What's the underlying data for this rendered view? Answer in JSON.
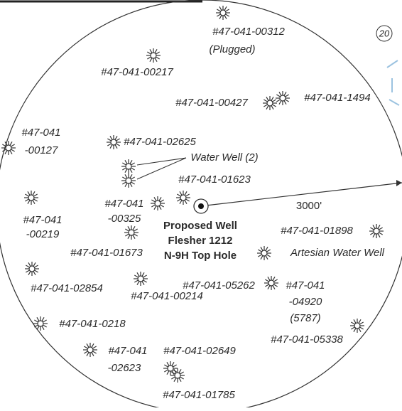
{
  "map_number": "20",
  "distance_label": "3000'",
  "proposed_well": [
    "Proposed Well",
    "Flesher 1212",
    "N-9H Top Hole"
  ],
  "labels": [
    "#47-041-00312",
    "(Plugged)",
    "#47-041-00217",
    "#47-041-00427",
    "#47-041-1494",
    "#47-041",
    "-00127",
    "#47-041-02625",
    "Water Well (2)",
    "#47-041-01623",
    "#47-041",
    "-00219",
    "#47-041",
    "-00325",
    "#47-041-01673",
    "#47-041-01898",
    "Artesian Water Well",
    "#47-041-02854",
    "#47-041-00214",
    "#47-041-05262",
    "#47-041",
    "-04920",
    "(5787)",
    "#47-041-0218",
    "#47-041-05338",
    "#47-041",
    "-02623",
    "#47-041-02649",
    "#47-041-01785"
  ]
}
